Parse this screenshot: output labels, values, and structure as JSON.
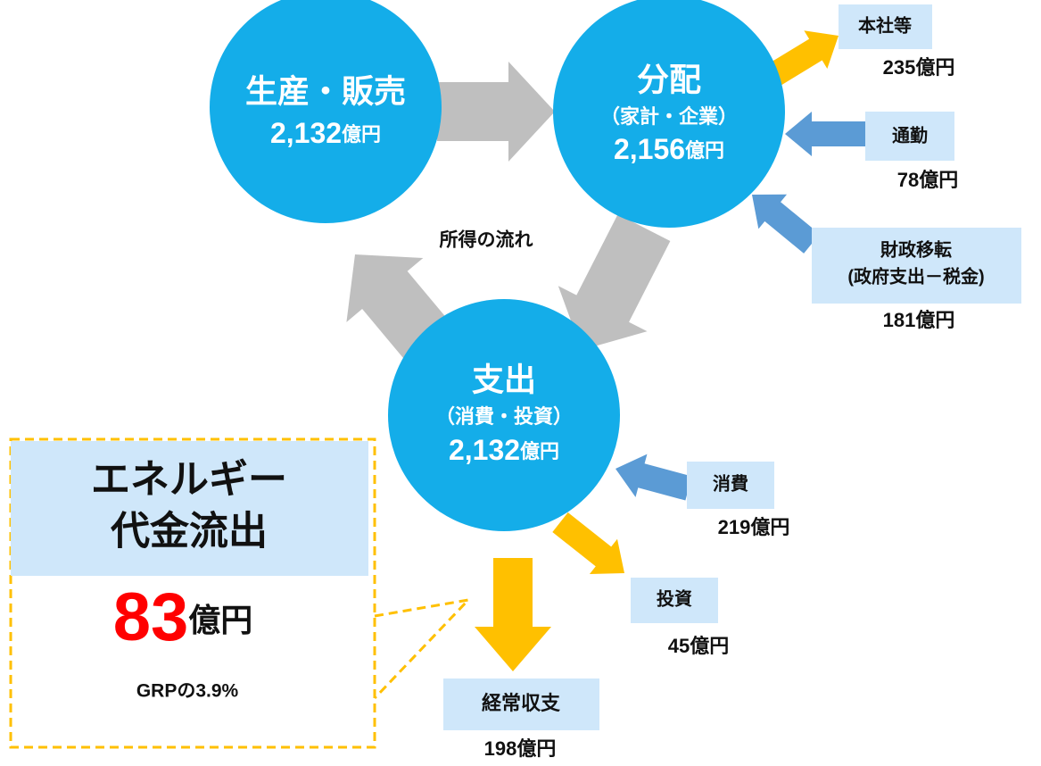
{
  "nodes": [
    {
      "title": "生産・販売",
      "amount": "2,132",
      "unit": "億円"
    },
    {
      "title": "分配",
      "subtitle": "（家計・企業）",
      "amount": "2,156",
      "unit": "億円"
    },
    {
      "title": "支出",
      "subtitle": "（消費・投資）",
      "amount": "2,132",
      "unit": "億円"
    }
  ],
  "flow_label": "所得の流れ",
  "flows": [
    {
      "label": [
        "本社等"
      ],
      "amount": "235億円"
    },
    {
      "label": [
        "通勤"
      ],
      "amount": "78億円"
    },
    {
      "label": [
        "財政移転",
        "(政府支出－税金)"
      ],
      "amount": "181億円"
    },
    {
      "label": [
        "消費"
      ],
      "amount": "219億円"
    },
    {
      "label": [
        "投資"
      ],
      "amount": "45億円"
    },
    {
      "label": [
        "経常収支"
      ],
      "amount": "198億円"
    }
  ],
  "callout": {
    "title": [
      "エネルギー",
      "代金流出"
    ],
    "amount": "83",
    "unit": "億円",
    "note": "GRPの3.9%"
  }
}
